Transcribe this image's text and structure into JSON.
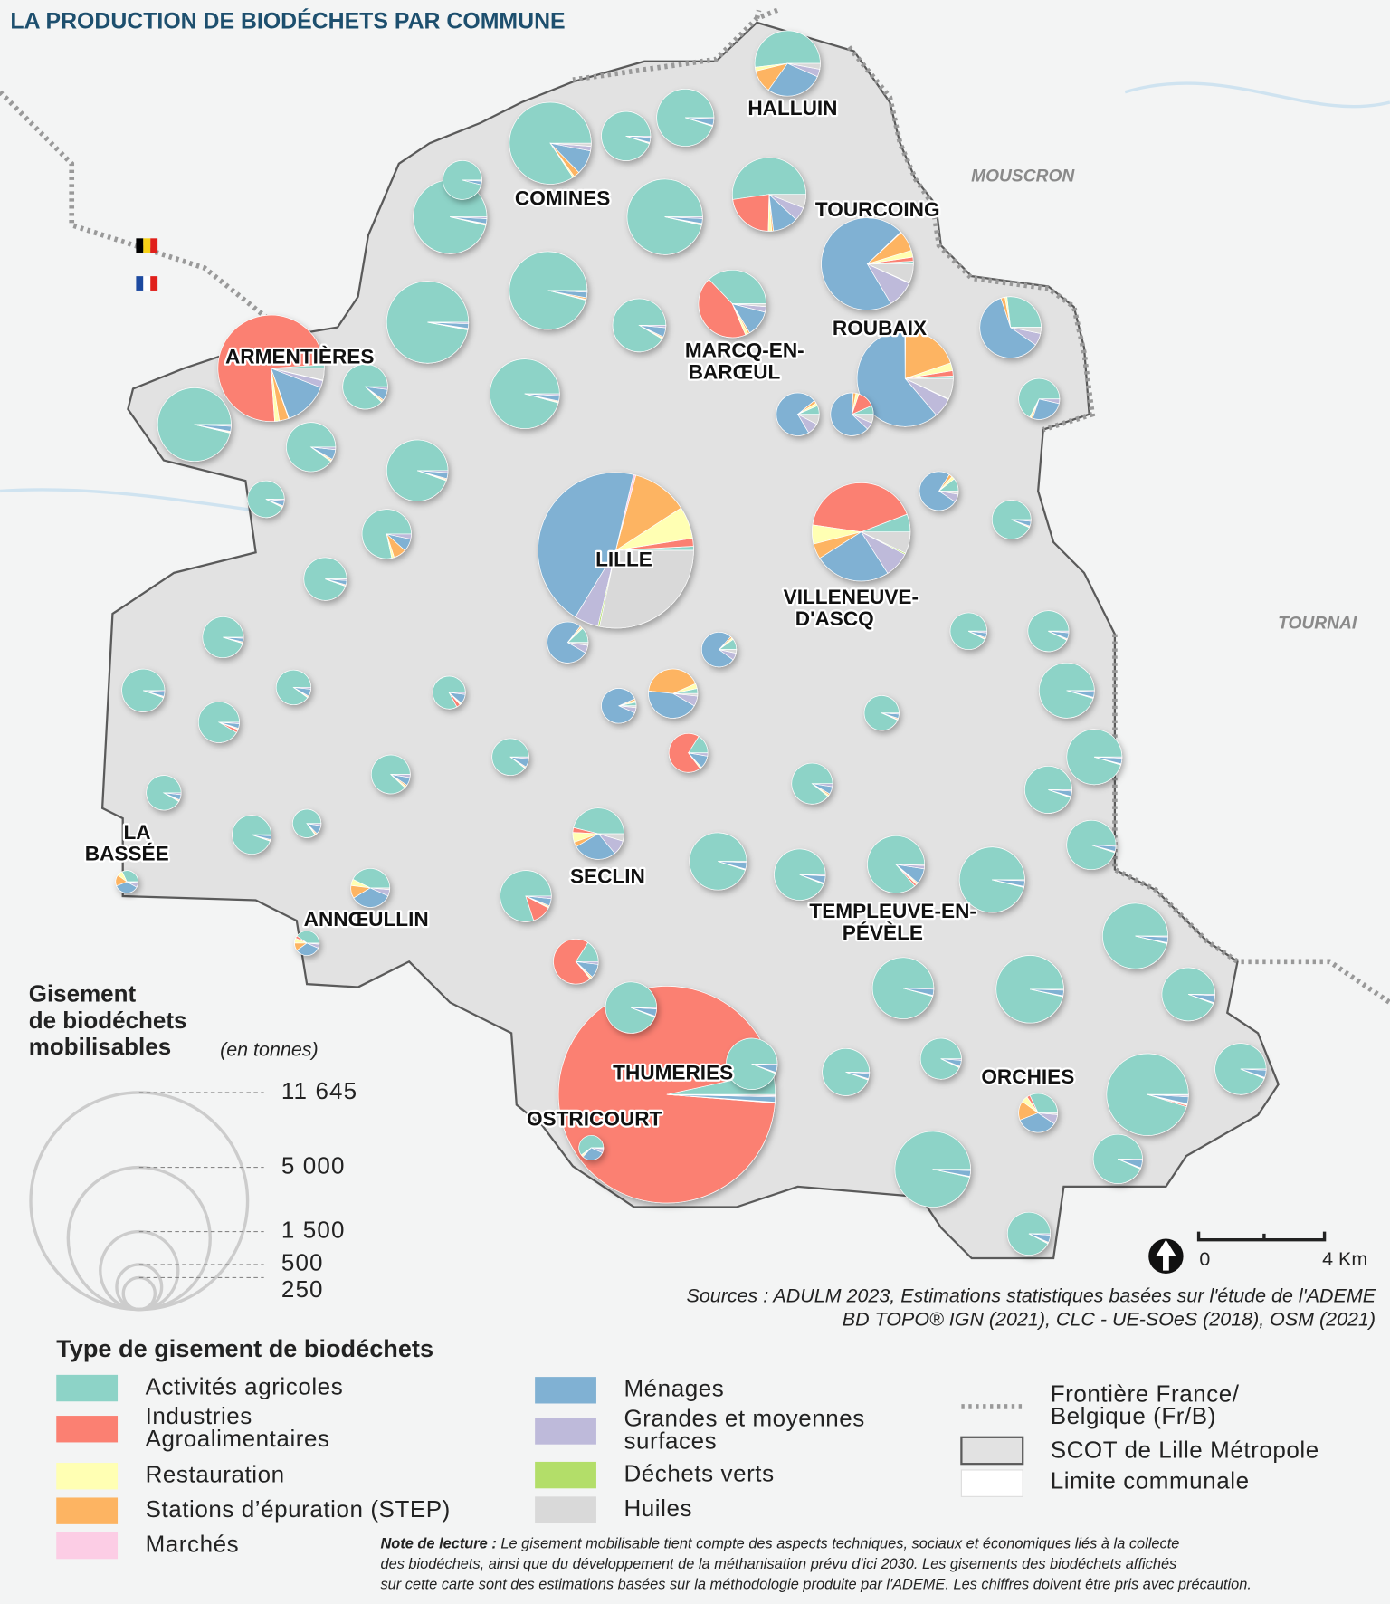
{
  "title": "LA PRODUCTION DE BIODÉCHETS PAR COMMUNE",
  "places": [
    "MOUSCRON",
    "TOURNAI"
  ],
  "categories": [
    {
      "label": [
        "Activités agricoles"
      ],
      "color": "#8dd3c7"
    },
    {
      "label": [
        "Industries",
        "Agroalimentaires"
      ],
      "color": "#fb8072"
    },
    {
      "label": [
        "Restauration"
      ],
      "color": "#ffffb3"
    },
    {
      "label": [
        "Stations d’épuration (STEP)"
      ],
      "color": "#fdb462"
    },
    {
      "label": [
        "Marchés"
      ],
      "color": "#fccde5"
    },
    {
      "label": [
        "Ménages"
      ],
      "color": "#80b1d3"
    },
    {
      "label": [
        "Grandes et moyennes",
        "surfaces"
      ],
      "color": "#bebada"
    },
    {
      "label": [
        "Déchets verts"
      ],
      "color": "#b3de69"
    },
    {
      "label": [
        "Huiles"
      ],
      "color": "#d9d9d9"
    }
  ],
  "communes": [
    {
      "label": [
        "HALLUIN"
      ],
      "values": [
        550,
        0,
        20,
        120,
        0,
        300,
        40,
        0,
        30
      ]
    },
    {
      "label": [
        "COMINES"
      ],
      "values": [
        1400,
        0,
        10,
        40,
        0,
        160,
        30,
        0,
        20
      ]
    },
    {
      "label": [
        "TOURCOING"
      ],
      "values": [
        20,
        30,
        50,
        150,
        5,
        1500,
        200,
        5,
        140
      ]
    },
    {
      "label": [
        "ROUBAIX"
      ],
      "values": [
        20,
        40,
        60,
        450,
        5,
        1400,
        150,
        5,
        160
      ]
    },
    {
      "label": [
        "ARMENTIÈRES"
      ],
      "values": [
        30,
        2100,
        40,
        80,
        5,
        380,
        60,
        5,
        100
      ]
    },
    {
      "label": [
        "MARCQ-EN-",
        "BARŒUL"
      ],
      "values": [
        420,
        500,
        15,
        10,
        0,
        140,
        30,
        0,
        15
      ]
    },
    {
      "label": [
        "LILLE"
      ],
      "values": [
        50,
        100,
        400,
        700,
        30,
        2700,
        300,
        20,
        1700
      ]
    },
    {
      "label": [
        "VILLENEUVE-",
        "D'ASCQ"
      ],
      "values": [
        140,
        1000,
        150,
        120,
        0,
        600,
        200,
        10,
        170
      ]
    },
    {
      "label": [
        "SECLIN"
      ],
      "values": [
        300,
        20,
        40,
        20,
        0,
        180,
        60,
        0,
        30
      ]
    },
    {
      "label": [
        "TEMPLEUVE-EN-",
        "PÉVÈLE"
      ],
      "values": [
        700,
        10,
        5,
        5,
        0,
        70,
        15,
        0,
        5
      ]
    },
    {
      "label": [
        "ORCHIES"
      ],
      "values": [
        1580,
        10,
        5,
        5,
        0,
        45,
        10,
        0,
        5
      ]
    },
    {
      "label": [
        "THUMERIES"
      ],
      "values": [
        400,
        11100,
        5,
        10,
        0,
        90,
        20,
        0,
        20
      ]
    },
    {
      "label": [
        "OSTRICOURT"
      ],
      "values": [
        90,
        0,
        3,
        2,
        0,
        45,
        8,
        0,
        2
      ]
    },
    {
      "label": [
        "ANNŒULLIN"
      ],
      "values": [
        60,
        5,
        10,
        15,
        0,
        50,
        8,
        0,
        2
      ]
    },
    {
      "label": [
        "LA",
        "BASSÉE"
      ],
      "values": [
        40,
        0,
        10,
        20,
        0,
        45,
        8,
        0,
        2
      ]
    }
  ],
  "other_communes": [
    {
      "values": [
        1440,
        0,
        5,
        10,
        0,
        35,
        10,
        0,
        0
      ]
    },
    {
      "values": [
        1610,
        0,
        5,
        5,
        0,
        30,
        10,
        0,
        0
      ]
    },
    {
      "values": [
        1150,
        0,
        5,
        5,
        0,
        30,
        10,
        0,
        0
      ]
    },
    {
      "values": [
        1290,
        0,
        5,
        5,
        0,
        30,
        10,
        0,
        0
      ]
    },
    {
      "values": [
        360,
        0,
        0,
        0,
        0,
        12,
        3,
        0,
        0
      ]
    },
    {
      "values": [
        570,
        0,
        2,
        3,
        0,
        20,
        5,
        0,
        0
      ]
    },
    {
      "values": [
        770,
        0,
        2,
        3,
        0,
        30,
        5,
        0,
        0
      ]
    },
    {
      "values": [
        1360,
        0,
        5,
        5,
        0,
        30,
        10,
        0,
        0
      ]
    },
    {
      "values": [
        640,
        0,
        5,
        5,
        0,
        40,
        10,
        0,
        0
      ]
    },
    {
      "values": [
        700,
        300,
        20,
        10,
        0,
        150,
        80,
        0,
        80
      ]
    },
    {
      "values": [
        1290,
        0,
        5,
        5,
        0,
        30,
        10,
        0,
        0
      ]
    },
    {
      "values": [
        540,
        0,
        5,
        5,
        0,
        40,
        10,
        0,
        0
      ]
    },
    {
      "values": [
        440,
        0,
        5,
        5,
        0,
        40,
        10,
        0,
        0
      ]
    },
    {
      "values": [
        880,
        0,
        5,
        5,
        0,
        30,
        10,
        0,
        0
      ]
    },
    {
      "values": [
        470,
        0,
        10,
        50,
        0,
        50,
        20,
        0,
        0
      ]
    },
    {
      "values": [
        310,
        0,
        2,
        3,
        0,
        15,
        5,
        0,
        0
      ]
    },
    {
      "values": [
        430,
        0,
        2,
        3,
        0,
        15,
        5,
        0,
        0
      ]
    },
    {
      "values": [
        395,
        0,
        2,
        3,
        0,
        12,
        3,
        0,
        0
      ]
    },
    {
      "values": [
        430,
        0,
        2,
        3,
        0,
        15,
        5,
        0,
        0
      ]
    },
    {
      "values": [
        380,
        10,
        2,
        3,
        0,
        15,
        5,
        0,
        0
      ]
    },
    {
      "values": [
        270,
        0,
        2,
        3,
        0,
        20,
        5,
        0,
        0
      ]
    },
    {
      "values": [
        275,
        0,
        2,
        3,
        0,
        15,
        5,
        0,
        0
      ]
    },
    {
      "values": [
        355,
        0,
        2,
        3,
        0,
        12,
        3,
        0,
        0
      ]
    },
    {
      "values": [
        170,
        0,
        2,
        3,
        0,
        20,
        5,
        0,
        0
      ]
    },
    {
      "values": [
        330,
        0,
        5,
        5,
        0,
        25,
        10,
        0,
        0
      ]
    },
    {
      "values": [
        220,
        10,
        3,
        2,
        0,
        25,
        5,
        0,
        0
      ]
    },
    {
      "values": [
        300,
        0,
        2,
        3,
        0,
        25,
        5,
        0,
        0
      ]
    },
    {
      "values": [
        520,
        80,
        5,
        5,
        0,
        30,
        10,
        0,
        0
      ]
    },
    {
      "values": [
        60,
        260,
        5,
        0,
        0,
        40,
        10,
        0,
        0
      ]
    },
    {
      "values": [
        770,
        0,
        2,
        3,
        0,
        30,
        5,
        0,
        0
      ]
    },
    {
      "values": [
        610,
        0,
        2,
        3,
        0,
        30,
        5,
        0,
        0
      ]
    },
    {
      "values": [
        370,
        0,
        5,
        5,
        0,
        25,
        10,
        0,
        0
      ]
    },
    {
      "values": [
        280,
        0,
        2,
        3,
        0,
        12,
        3,
        0,
        0
      ]
    },
    {
      "values": [
        310,
        0,
        2,
        3,
        0,
        15,
        5,
        0,
        0
      ]
    },
    {
      "values": [
        520,
        0,
        2,
        3,
        0,
        20,
        5,
        0,
        0
      ]
    },
    {
      "values": [
        720,
        0,
        2,
        3,
        0,
        25,
        5,
        0,
        0
      ]
    },
    {
      "values": [
        570,
        0,
        2,
        3,
        0,
        20,
        5,
        0,
        0
      ]
    },
    {
      "values": [
        720,
        0,
        2,
        3,
        0,
        25,
        5,
        0,
        0
      ]
    },
    {
      "values": [
        385,
        0,
        2,
        3,
        0,
        20,
        5,
        0,
        0
      ]
    },
    {
      "values": [
        1020,
        0,
        2,
        3,
        0,
        30,
        5,
        0,
        0
      ]
    },
    {
      "values": [
        1020,
        0,
        2,
        3,
        0,
        30,
        5,
        0,
        0
      ]
    },
    {
      "values": [
        1090,
        0,
        2,
        3,
        0,
        30,
        5,
        0,
        0
      ]
    },
    {
      "values": [
        660,
        0,
        2,
        3,
        0,
        30,
        5,
        0,
        0
      ]
    },
    {
      "values": [
        890,
        0,
        2,
        3,
        0,
        30,
        5,
        0,
        0
      ]
    },
    {
      "values": [
        385,
        0,
        2,
        3,
        0,
        20,
        5,
        0,
        0
      ]
    },
    {
      "values": [
        520,
        0,
        2,
        3,
        0,
        20,
        5,
        0,
        0
      ]
    },
    {
      "values": [
        610,
        0,
        2,
        3,
        0,
        30,
        5,
        0,
        0
      ]
    },
    {
      "values": [
        560,
        0,
        2,
        3,
        0,
        30,
        5,
        0,
        0
      ]
    },
    {
      "values": [
        1370,
        0,
        2,
        3,
        0,
        35,
        8,
        0,
        0
      ]
    },
    {
      "values": [
        420,
        0,
        2,
        3,
        0,
        25,
        5,
        0,
        0
      ]
    },
    {
      "values": [
        610,
        0,
        2,
        3,
        0,
        30,
        5,
        0,
        0
      ]
    },
    {
      "values": [
        610,
        0,
        2,
        3,
        0,
        30,
        5,
        0,
        0
      ]
    },
    {
      "values": [
        80,
        350,
        5,
        5,
        0,
        50,
        10,
        0,
        0
      ]
    },
    {
      "values": [
        250,
        0,
        10,
        20,
        0,
        560,
        60,
        0,
        30
      ]
    },
    {
      "values": [
        40,
        0,
        10,
        10,
        0,
        280,
        25,
        0,
        10
      ]
    },
    {
      "values": [
        30,
        0,
        10,
        10,
        0,
        330,
        40,
        0,
        35
      ]
    },
    {
      "values": [
        30,
        60,
        10,
        10,
        0,
        290,
        25,
        0,
        30
      ]
    },
    {
      "values": [
        20,
        0,
        20,
        250,
        0,
        260,
        40,
        0,
        10
      ]
    },
    {
      "values": [
        30,
        0,
        5,
        5,
        0,
        230,
        20,
        0,
        10
      ]
    },
    {
      "values": [
        50,
        0,
        5,
        5,
        0,
        320,
        25,
        0,
        10
      ]
    },
    {
      "values": [
        10,
        0,
        5,
        5,
        0,
        260,
        15,
        0,
        5
      ]
    },
    {
      "values": [
        120,
        10,
        20,
        60,
        0,
        130,
        30,
        0,
        5
      ]
    },
    {
      "values": [
        160,
        0,
        20,
        40,
        0,
        130,
        20,
        0,
        5
      ]
    },
    {
      "values": [
        280,
        0,
        5,
        5,
        0,
        110,
        15,
        0,
        0
      ]
    },
    {
      "values": [
        350,
        0,
        2,
        3,
        0,
        15,
        5,
        0,
        0
      ]
    }
  ],
  "size_legend": {
    "title": [
      "Gisement",
      "de biodéchets",
      "mobilisables"
    ],
    "unit": "(en tonnes)",
    "sizes": [
      {
        "value": 11645,
        "label": "11 645"
      },
      {
        "value": 5000,
        "label": "5 000"
      },
      {
        "value": 1500,
        "label": "1 500"
      },
      500,
      250
    ]
  },
  "type_legend_title": "Type de gisement de biodéchets",
  "other_legend": {
    "border": [
      "Frontière France/",
      "Belgique (Fr/B)"
    ],
    "scot": "SCOT de Lille Métropole",
    "commune_limit": "Limite communale"
  },
  "scale_bar": [
    "0",
    "4 Km"
  ],
  "sources": [
    "Sources : ADULM 2023, Estimations statistiques basées sur l'étude de l'ADEME",
    "BD TOPO® IGN (2021), CLC - UE-SOeS (2018), OSM (2021)"
  ],
  "note": {
    "lead": "Note de lecture :",
    "lines": [
      " Le gisement mobilisable tient compte des aspects techniques, sociaux et économiques liés à la collecte",
      "des biodéchets, ainsi que du développement de la méthanisation prévu d'ici 2030. Les gisements des biodéchets affichés",
      "sur cette carte sont des estimations basées sur la méthodologie produite par l'ADEME. Les chiffres doivent être pris avec précaution."
    ]
  }
}
